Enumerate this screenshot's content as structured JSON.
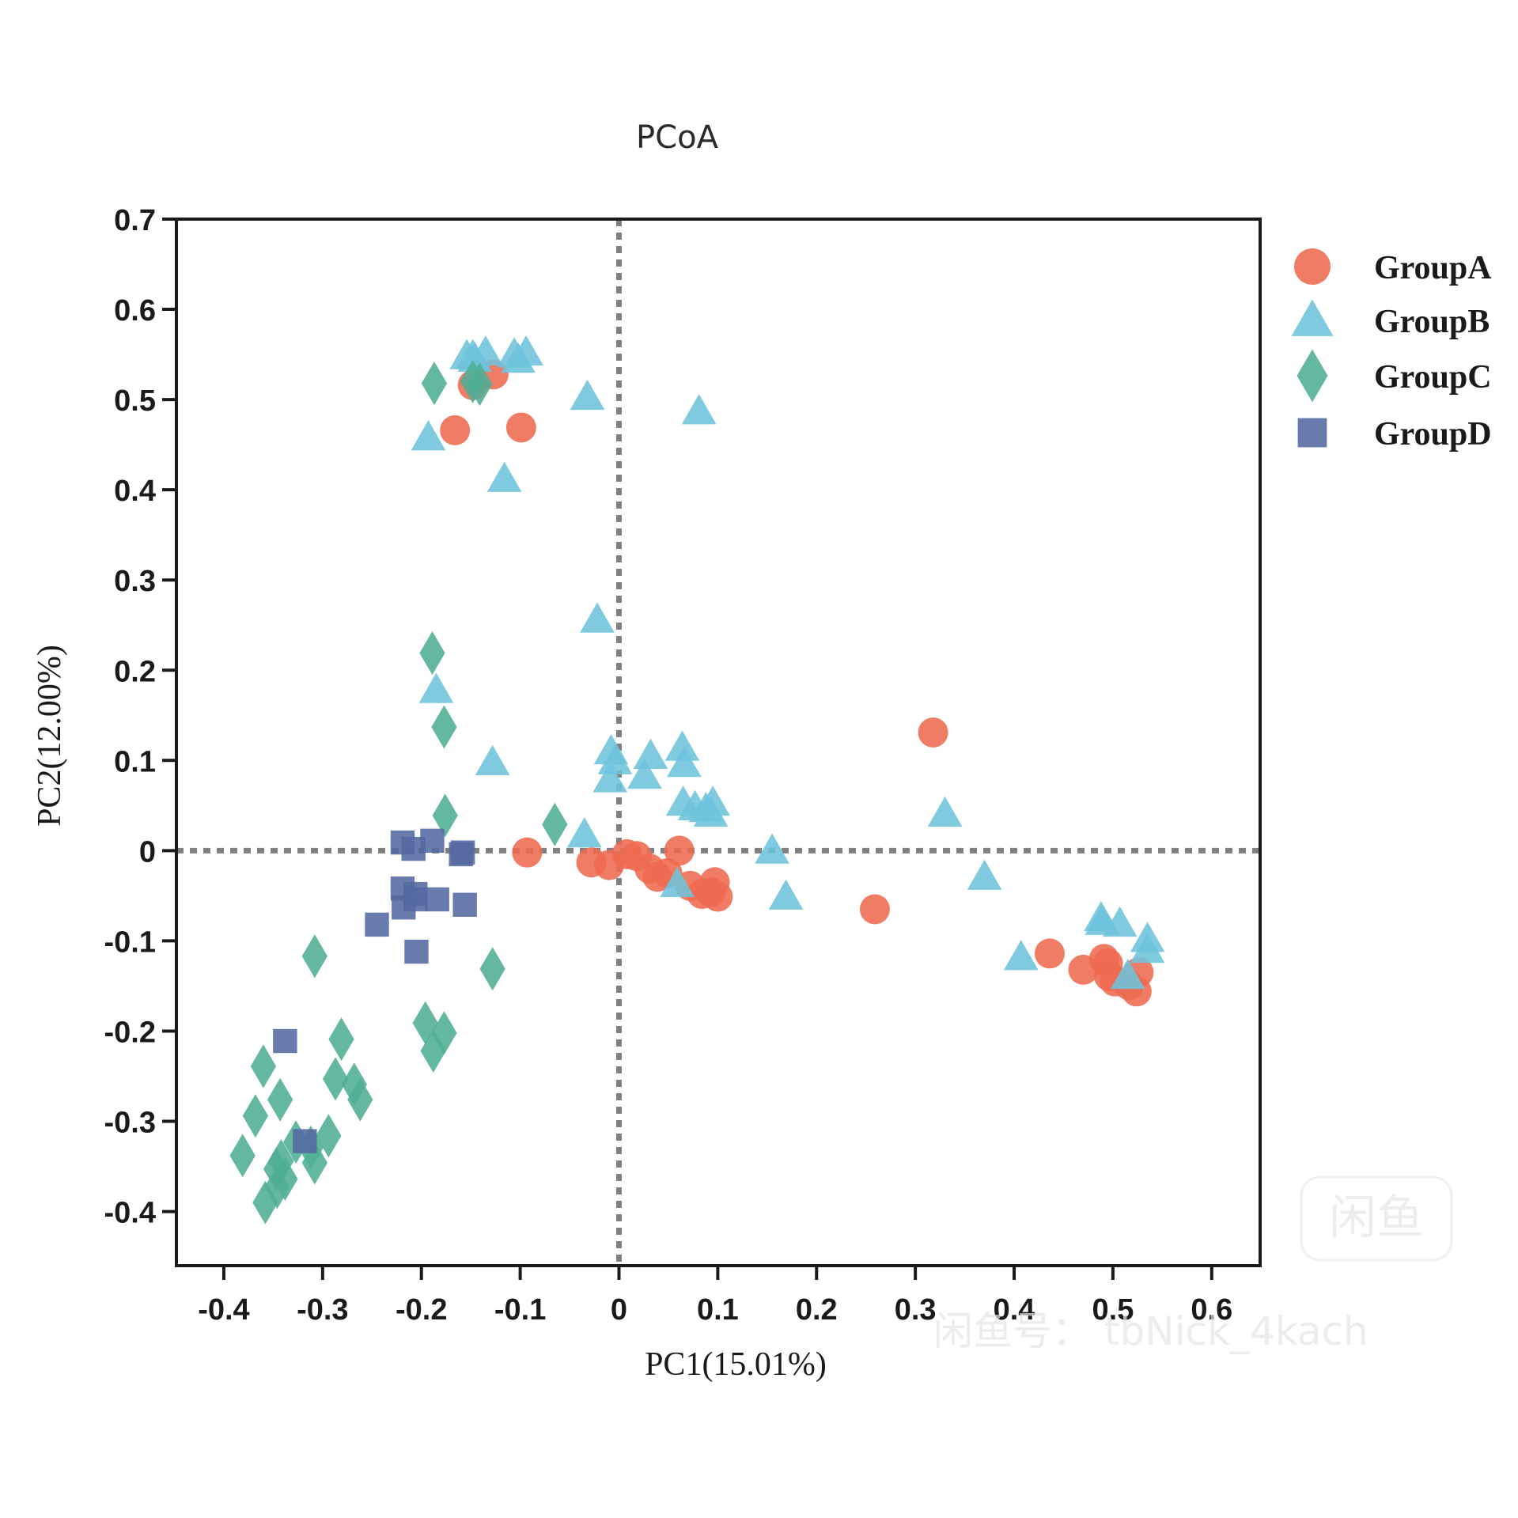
{
  "chart_data": {
    "type": "scatter",
    "title": "PCoA",
    "xlabel": "PC1(15.01%)",
    "ylabel": "PC2(12.00%)",
    "xlim": [
      -0.448,
      0.649
    ],
    "ylim": [
      -0.46,
      0.7
    ],
    "xticks": [
      -0.4,
      -0.3,
      -0.2,
      -0.1,
      0,
      0.1,
      0.2,
      0.3,
      0.4,
      0.5,
      0.6
    ],
    "xtick_labels": [
      "-0.4",
      "-0.3",
      "-0.2",
      "-0.1",
      "0",
      "0.1",
      "0.2",
      "0.3",
      "0.4",
      "0.5",
      "0.6"
    ],
    "yticks": [
      0.7,
      0.6,
      0.5,
      0.4,
      0.3,
      0.2,
      0.1,
      0,
      -0.1,
      -0.2,
      -0.3,
      -0.4
    ],
    "ytick_labels": [
      "0.7",
      "0.6",
      "0.5",
      "0.4",
      "0.3",
      "0.2",
      "0.1",
      "0",
      "-0.1",
      "-0.2",
      "-0.3",
      "-0.4"
    ],
    "grid": false,
    "reference_lines": {
      "x": 0,
      "y": 0,
      "style": "dotted",
      "color": "#808080"
    },
    "legend_position": "right",
    "series": [
      {
        "name": "GroupA",
        "marker": "circle",
        "color": "#EE6A50",
        "points": [
          [
            -0.166,
            0.466
          ],
          [
            -0.099,
            0.469
          ],
          [
            -0.148,
            0.516
          ],
          [
            -0.127,
            0.528
          ],
          [
            -0.093,
            -0.002
          ],
          [
            -0.028,
            -0.013
          ],
          [
            -0.01,
            -0.016
          ],
          [
            0.008,
            -0.004
          ],
          [
            0.018,
            -0.006
          ],
          [
            0.031,
            -0.02
          ],
          [
            0.039,
            -0.029
          ],
          [
            0.049,
            -0.025
          ],
          [
            0.061,
            0.0
          ],
          [
            0.072,
            -0.039
          ],
          [
            0.084,
            -0.048
          ],
          [
            0.093,
            -0.046
          ],
          [
            0.097,
            -0.035
          ],
          [
            0.1,
            -0.051
          ],
          [
            0.318,
            0.131
          ],
          [
            0.259,
            -0.065
          ],
          [
            0.436,
            -0.114
          ],
          [
            0.47,
            -0.132
          ],
          [
            0.491,
            -0.12
          ],
          [
            0.495,
            -0.125
          ],
          [
            0.496,
            -0.139
          ],
          [
            0.502,
            -0.145
          ],
          [
            0.516,
            -0.149
          ],
          [
            0.524,
            -0.156
          ],
          [
            0.526,
            -0.135
          ]
        ]
      },
      {
        "name": "GroupB",
        "marker": "triangle",
        "color": "#6EC3DC",
        "points": [
          [
            -0.154,
            0.548
          ],
          [
            -0.148,
            0.548
          ],
          [
            -0.146,
            0.545
          ],
          [
            -0.135,
            0.552
          ],
          [
            -0.106,
            0.55
          ],
          [
            -0.094,
            0.552
          ],
          [
            -0.102,
            0.544
          ],
          [
            -0.193,
            0.458
          ],
          [
            -0.116,
            0.412
          ],
          [
            -0.032,
            0.503
          ],
          [
            0.081,
            0.487
          ],
          [
            -0.022,
            0.256
          ],
          [
            -0.185,
            0.178
          ],
          [
            -0.128,
            0.098
          ],
          [
            -0.035,
            0.018
          ],
          [
            -0.008,
            0.11
          ],
          [
            -0.004,
            0.099
          ],
          [
            -0.009,
            0.079
          ],
          [
            0.032,
            0.105
          ],
          [
            0.026,
            0.083
          ],
          [
            0.064,
            0.114
          ],
          [
            0.066,
            0.096
          ],
          [
            0.065,
            0.053
          ],
          [
            0.077,
            0.048
          ],
          [
            0.088,
            0.046
          ],
          [
            0.095,
            0.053
          ],
          [
            0.093,
            0.041
          ],
          [
            0.059,
            -0.037
          ],
          [
            0.155,
            0.0
          ],
          [
            0.169,
            -0.051
          ],
          [
            0.33,
            0.041
          ],
          [
            0.37,
            -0.029
          ],
          [
            0.407,
            -0.118
          ],
          [
            0.488,
            -0.075
          ],
          [
            0.489,
            -0.079
          ],
          [
            0.507,
            -0.081
          ],
          [
            0.535,
            -0.098
          ],
          [
            0.535,
            -0.11
          ],
          [
            0.515,
            -0.139
          ]
        ]
      },
      {
        "name": "GroupC",
        "marker": "diamond",
        "color": "#4FAE94",
        "points": [
          [
            -0.187,
            0.518
          ],
          [
            -0.148,
            0.52
          ],
          [
            -0.141,
            0.517
          ],
          [
            -0.189,
            0.219
          ],
          [
            -0.177,
            0.137
          ],
          [
            -0.176,
            0.039
          ],
          [
            -0.065,
            0.029
          ],
          [
            -0.308,
            -0.117
          ],
          [
            -0.128,
            -0.131
          ],
          [
            -0.196,
            -0.191
          ],
          [
            -0.177,
            -0.202
          ],
          [
            -0.188,
            -0.222
          ],
          [
            -0.281,
            -0.209
          ],
          [
            -0.36,
            -0.239
          ],
          [
            -0.287,
            -0.253
          ],
          [
            -0.268,
            -0.259
          ],
          [
            -0.262,
            -0.276
          ],
          [
            -0.343,
            -0.276
          ],
          [
            -0.368,
            -0.294
          ],
          [
            -0.381,
            -0.338
          ],
          [
            -0.347,
            -0.353
          ],
          [
            -0.342,
            -0.344
          ],
          [
            -0.338,
            -0.364
          ],
          [
            -0.327,
            -0.323
          ],
          [
            -0.312,
            -0.329
          ],
          [
            -0.308,
            -0.346
          ],
          [
            -0.294,
            -0.316
          ],
          [
            -0.358,
            -0.39
          ],
          [
            -0.346,
            -0.373
          ]
        ]
      },
      {
        "name": "GroupD",
        "marker": "square",
        "color": "#5468A0",
        "points": [
          [
            -0.219,
            0.009
          ],
          [
            -0.208,
            0.002
          ],
          [
            -0.189,
            0.011
          ],
          [
            -0.16,
            -0.004
          ],
          [
            -0.158,
            -0.002
          ],
          [
            -0.206,
            -0.048
          ],
          [
            -0.206,
            -0.054
          ],
          [
            -0.218,
            -0.063
          ],
          [
            -0.219,
            -0.042
          ],
          [
            -0.184,
            -0.054
          ],
          [
            -0.156,
            -0.06
          ],
          [
            -0.245,
            -0.082
          ],
          [
            -0.205,
            -0.112
          ],
          [
            -0.338,
            -0.211
          ],
          [
            -0.318,
            -0.322
          ]
        ]
      }
    ]
  },
  "watermark": {
    "badge_text": "闲鱼",
    "text": "闲鱼号： tbNick_4kach"
  }
}
